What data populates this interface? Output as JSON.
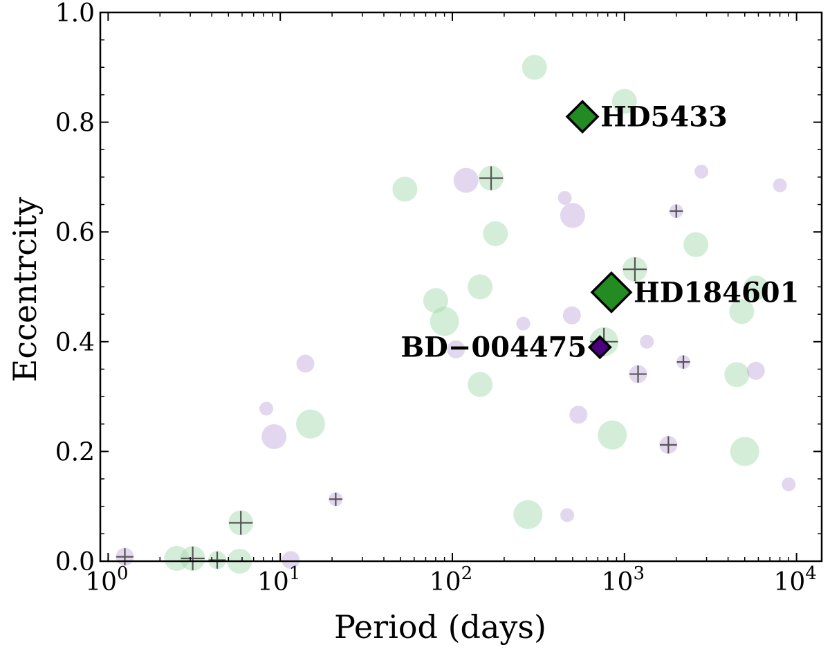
{
  "chart_data": {
    "type": "scatter",
    "xlabel": "Period (days)",
    "ylabel": "Eccentrcity",
    "xscale": "log",
    "xlim": [
      0.9,
      14000
    ],
    "ylim": [
      0.0,
      1.0
    ],
    "xticks": [
      {
        "value": 1,
        "label": "10",
        "exp": "0"
      },
      {
        "value": 10,
        "label": "10",
        "exp": "1"
      },
      {
        "value": 100,
        "label": "10",
        "exp": "2"
      },
      {
        "value": 1000,
        "label": "10",
        "exp": "3"
      },
      {
        "value": 10000,
        "label": "10",
        "exp": "4"
      }
    ],
    "yticks": [
      {
        "value": 0.0,
        "label": "0.0"
      },
      {
        "value": 0.2,
        "label": "0.2"
      },
      {
        "value": 0.4,
        "label": "0.4"
      },
      {
        "value": 0.6,
        "label": "0.6"
      },
      {
        "value": 0.8,
        "label": "0.8"
      },
      {
        "value": 1.0,
        "label": "1.0"
      }
    ],
    "grid": false,
    "colors": {
      "green_bg": "#9fd6a8",
      "purple_bg": "#c1a6dc",
      "green_highlight": "#228b22",
      "purple_highlight": "#4b0082",
      "cross": "#555555"
    },
    "series": [
      {
        "color": "green",
        "points": [
          {
            "x": 2.5,
            "y": 0.005,
            "size": 2
          },
          {
            "x": 3.1,
            "y": 0.005,
            "size": 2,
            "cross": true
          },
          {
            "x": 4.3,
            "y": 0.002,
            "size": 1,
            "cross": true
          },
          {
            "x": 5.8,
            "y": 0.0,
            "size": 2
          },
          {
            "x": 5.9,
            "y": 0.07,
            "size": 2,
            "cross": true
          },
          {
            "x": 15,
            "y": 0.25,
            "size": 3
          },
          {
            "x": 53,
            "y": 0.678,
            "size": 2
          },
          {
            "x": 80,
            "y": 0.475,
            "size": 2
          },
          {
            "x": 90,
            "y": 0.437,
            "size": 3
          },
          {
            "x": 145,
            "y": 0.5,
            "size": 2
          },
          {
            "x": 145,
            "y": 0.322,
            "size": 2
          },
          {
            "x": 168,
            "y": 0.698,
            "size": 2,
            "cross": true
          },
          {
            "x": 178,
            "y": 0.597,
            "size": 2
          },
          {
            "x": 275,
            "y": 0.085,
            "size": 3
          },
          {
            "x": 300,
            "y": 0.9,
            "size": 2
          },
          {
            "x": 760,
            "y": 0.4,
            "size": 3,
            "cross": true
          },
          {
            "x": 850,
            "y": 0.23,
            "size": 3
          },
          {
            "x": 1000,
            "y": 0.838,
            "size": 2
          },
          {
            "x": 1150,
            "y": 0.532,
            "size": 2,
            "cross": true
          },
          {
            "x": 2600,
            "y": 0.577,
            "size": 2
          },
          {
            "x": 4500,
            "y": 0.34,
            "size": 2
          },
          {
            "x": 4800,
            "y": 0.455,
            "size": 2
          },
          {
            "x": 5000,
            "y": 0.2,
            "size": 3
          },
          {
            "x": 5800,
            "y": 0.498,
            "size": 2
          }
        ]
      },
      {
        "color": "purple",
        "points": [
          {
            "x": 1.25,
            "y": 0.008,
            "size": 1,
            "cross": true
          },
          {
            "x": 8.3,
            "y": 0.278,
            "size": 0
          },
          {
            "x": 9.2,
            "y": 0.227,
            "size": 2
          },
          {
            "x": 11.5,
            "y": 0.002,
            "size": 1
          },
          {
            "x": 14,
            "y": 0.36,
            "size": 1
          },
          {
            "x": 21,
            "y": 0.113,
            "size": 0,
            "cross": true
          },
          {
            "x": 105,
            "y": 0.386,
            "size": 1
          },
          {
            "x": 120,
            "y": 0.694,
            "size": 2
          },
          {
            "x": 258,
            "y": 0.433,
            "size": 0
          },
          {
            "x": 450,
            "y": 0.662,
            "size": 0
          },
          {
            "x": 465,
            "y": 0.084,
            "size": 0
          },
          {
            "x": 495,
            "y": 0.448,
            "size": 1
          },
          {
            "x": 500,
            "y": 0.63,
            "size": 2
          },
          {
            "x": 540,
            "y": 0.267,
            "size": 1
          },
          {
            "x": 1200,
            "y": 0.341,
            "size": 1,
            "cross": true
          },
          {
            "x": 1350,
            "y": 0.4,
            "size": 0
          },
          {
            "x": 1800,
            "y": 0.212,
            "size": 1,
            "cross": true
          },
          {
            "x": 2000,
            "y": 0.638,
            "size": 0,
            "cross": true
          },
          {
            "x": 2200,
            "y": 0.363,
            "size": 0,
            "cross": true
          },
          {
            "x": 2800,
            "y": 0.71,
            "size": 0
          },
          {
            "x": 5800,
            "y": 0.347,
            "size": 1
          },
          {
            "x": 8000,
            "y": 0.685,
            "size": 0
          },
          {
            "x": 9000,
            "y": 0.14,
            "size": 0
          }
        ]
      }
    ],
    "highlights": [
      {
        "name": "HD5433",
        "x": 570,
        "y": 0.81,
        "color": "green",
        "size": "medium",
        "label_side": "right"
      },
      {
        "name": "HD184601",
        "x": 840,
        "y": 0.49,
        "color": "green",
        "size": "large",
        "label_side": "right"
      },
      {
        "name": "BD−004475",
        "x": 720,
        "y": 0.39,
        "color": "purple",
        "size": "small",
        "label_side": "left"
      }
    ]
  }
}
